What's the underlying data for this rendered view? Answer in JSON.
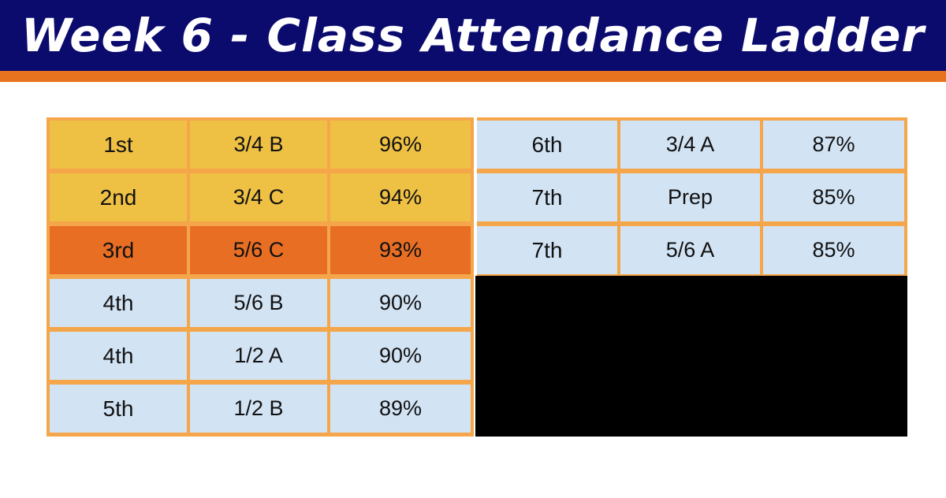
{
  "title": "Week 6 - Class Attendance Ladder",
  "colors": {
    "banner": "#0b0b6e",
    "stripe": "#e8731f",
    "grid_border": "#f5a64a",
    "first_second": "#eec043",
    "third": "#e86e24",
    "others": "#d2e3f4"
  },
  "ladder": {
    "left": [
      {
        "rank": "1st",
        "class": "3/4 B",
        "percent": "96%",
        "highlight": "gold"
      },
      {
        "rank": "2nd",
        "class": "3/4 C",
        "percent": "94%",
        "highlight": "gold"
      },
      {
        "rank": "3rd",
        "class": "5/6 C",
        "percent": "93%",
        "highlight": "orange"
      },
      {
        "rank": "4th",
        "class": "5/6 B",
        "percent": "90%",
        "highlight": "blue"
      },
      {
        "rank": "4th",
        "class": "1/2 A",
        "percent": "90%",
        "highlight": "blue"
      },
      {
        "rank": "5th",
        "class": "1/2 B",
        "percent": "89%",
        "highlight": "blue"
      }
    ],
    "right": [
      {
        "rank": "6th",
        "class": "3/4 A",
        "percent": "87%",
        "highlight": "blue"
      },
      {
        "rank": "7th",
        "class": "Prep",
        "percent": "85%",
        "highlight": "blue"
      },
      {
        "rank": "7th",
        "class": "5/6 A",
        "percent": "85%",
        "highlight": "blue"
      }
    ]
  }
}
